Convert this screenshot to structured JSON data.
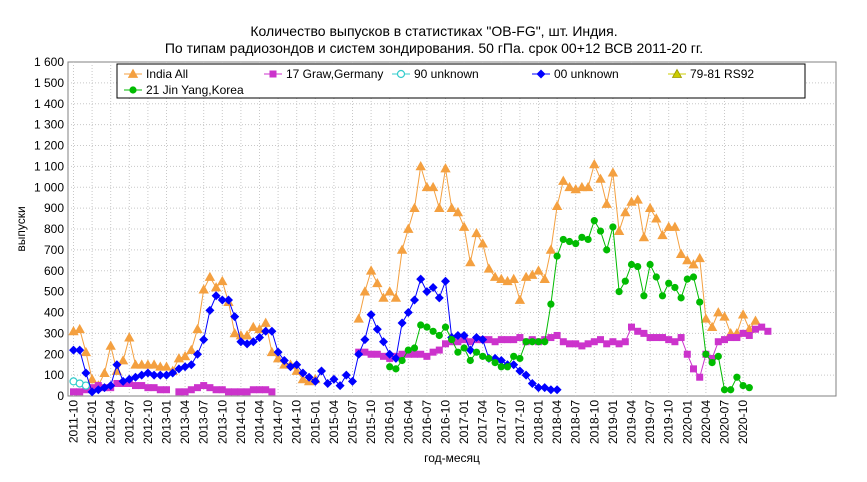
{
  "chart_data": {
    "type": "line",
    "title": "Количество выпусков в статистиках \"OB-FG\", шт. Индия.",
    "subtitle": "По типам радиозондов и систем зондирования. 50 гПа. срок 00+12 ВСВ 2011-20 гг.",
    "xlabel": "год-месяц",
    "ylabel": "выпуски",
    "ylim": [
      0,
      1600
    ],
    "yticks": [
      "0",
      "100",
      "200",
      "300",
      "400",
      "500",
      "600",
      "700",
      "800",
      "900",
      "1 000",
      "1 100",
      "1 200",
      "1 300",
      "1 400",
      "1 500",
      "1 600"
    ],
    "x_start": "2011-10",
    "xtick_labels": [
      "2011-10",
      "2012-01",
      "2012-04",
      "2012-07",
      "2012-10",
      "2013-01",
      "2013-04",
      "2013-07",
      "2013-10",
      "2014-01",
      "2014-04",
      "2014-07",
      "2014-10",
      "2015-01",
      "2015-04",
      "2015-07",
      "2015-10",
      "2016-01",
      "2016-04",
      "2016-07",
      "2016-10",
      "2017-01",
      "2017-04",
      "2017-07",
      "2017-10",
      "2018-01",
      "2018-04",
      "2018-07",
      "2018-10",
      "2019-01",
      "2019-04",
      "2019-07",
      "2019-10",
      "2020-01",
      "2020-04",
      "2020-07",
      "2020-10"
    ],
    "grid": true,
    "legend_position": "top",
    "series": [
      {
        "name": "India All",
        "color": "#f4a040",
        "marker": "triangle",
        "values": [
          310,
          320,
          210,
          80,
          50,
          110,
          240,
          120,
          170,
          280,
          150,
          150,
          150,
          150,
          140,
          140,
          120,
          180,
          190,
          220,
          320,
          510,
          570,
          520,
          550,
          450,
          300,
          290,
          290,
          330,
          320,
          350,
          210,
          180,
          150,
          150,
          120,
          80,
          70,
          80,
          null,
          null,
          null,
          null,
          null,
          null,
          370,
          500,
          600,
          540,
          470,
          500,
          470,
          700,
          800,
          900,
          1100,
          1000,
          1000,
          900,
          1090,
          900,
          880,
          810,
          640,
          780,
          730,
          610,
          570,
          560,
          550,
          560,
          460,
          570,
          580,
          600,
          560,
          700,
          910,
          1030,
          1000,
          990,
          1000,
          1000,
          1110,
          1040,
          920,
          1070,
          790,
          880,
          930,
          940,
          760,
          900,
          850,
          770,
          810,
          810,
          680,
          650,
          630,
          660,
          370,
          330,
          400,
          380,
          300,
          300,
          390,
          320,
          360
        ]
      },
      {
        "name": "17 Graw,Germany",
        "color": "#cc33cc",
        "marker": "square",
        "values": [
          20,
          20,
          30,
          40,
          50,
          40,
          40,
          60,
          60,
          60,
          50,
          50,
          40,
          40,
          30,
          30,
          null,
          20,
          20,
          30,
          40,
          50,
          40,
          30,
          30,
          20,
          20,
          20,
          20,
          30,
          30,
          30,
          20,
          null,
          null,
          null,
          null,
          null,
          null,
          null,
          null,
          null,
          null,
          null,
          null,
          null,
          210,
          210,
          200,
          200,
          190,
          180,
          190,
          200,
          200,
          200,
          200,
          190,
          210,
          220,
          250,
          260,
          260,
          270,
          260,
          270,
          270,
          270,
          260,
          270,
          270,
          270,
          280,
          260,
          270,
          260,
          270,
          280,
          290,
          260,
          250,
          250,
          240,
          250,
          260,
          270,
          250,
          260,
          250,
          260,
          330,
          310,
          300,
          280,
          280,
          280,
          270,
          260,
          280,
          200,
          130,
          90,
          200,
          180,
          260,
          270,
          280,
          280,
          300,
          290,
          320,
          330,
          310
        ]
      },
      {
        "name": "90 unknown",
        "color": "#33cccc",
        "marker": "circle-open",
        "values": [
          70,
          60,
          50,
          null,
          null,
          null,
          null,
          null,
          null,
          null,
          null,
          null,
          null,
          null,
          null,
          null,
          null,
          null,
          null,
          null,
          null,
          null,
          null,
          null,
          null,
          null,
          null,
          null,
          null,
          null,
          null,
          null,
          null,
          null,
          null,
          null,
          null,
          null,
          null,
          null,
          null,
          null,
          null,
          null,
          null,
          null,
          null,
          null,
          null,
          null,
          null,
          null,
          null,
          null,
          null,
          null,
          null,
          null,
          null,
          null,
          null,
          null,
          null,
          null,
          null,
          null,
          null,
          null,
          null,
          null,
          null,
          null,
          null,
          null,
          null,
          null,
          null,
          null,
          null,
          null,
          null,
          null,
          null,
          null,
          null,
          null,
          null,
          null,
          null,
          null,
          null,
          null,
          null,
          null,
          null,
          null,
          null,
          null,
          null,
          null,
          null,
          null,
          null,
          null,
          null,
          null,
          null,
          null,
          null,
          null,
          null,
          null,
          null
        ]
      },
      {
        "name": "00 unknown",
        "color": "#0000ff",
        "marker": "diamond",
        "values": [
          220,
          220,
          110,
          20,
          30,
          40,
          50,
          150,
          70,
          80,
          90,
          100,
          110,
          100,
          100,
          100,
          110,
          130,
          140,
          150,
          200,
          270,
          410,
          480,
          460,
          460,
          380,
          260,
          250,
          260,
          280,
          310,
          310,
          210,
          170,
          140,
          150,
          110,
          90,
          70,
          120,
          60,
          80,
          50,
          100,
          70,
          200,
          270,
          390,
          320,
          260,
          200,
          180,
          350,
          400,
          460,
          560,
          500,
          520,
          470,
          550,
          280,
          290,
          290,
          220,
          280,
          270,
          180,
          180,
          170,
          150,
          150,
          120,
          100,
          60,
          40,
          40,
          30,
          30,
          null,
          null,
          null,
          null,
          null,
          null,
          null,
          null,
          null,
          null,
          null,
          null,
          null,
          null,
          null,
          null,
          null,
          null,
          null,
          null,
          null,
          null,
          null,
          null,
          null,
          null,
          null,
          null,
          null,
          null,
          null,
          null,
          null,
          null
        ]
      },
      {
        "name": "79-81 RS92",
        "color": "#cccc00",
        "marker": "triangle-yellow",
        "values": []
      },
      {
        "name": "21 Jin Yang,Korea",
        "color": "#00bb00",
        "marker": "circle",
        "values": [
          null,
          null,
          null,
          null,
          null,
          null,
          null,
          null,
          null,
          null,
          null,
          null,
          null,
          null,
          null,
          null,
          null,
          null,
          null,
          null,
          null,
          null,
          null,
          null,
          null,
          null,
          null,
          null,
          null,
          null,
          null,
          null,
          null,
          null,
          null,
          null,
          null,
          null,
          null,
          null,
          null,
          null,
          null,
          null,
          null,
          null,
          null,
          null,
          null,
          null,
          null,
          140,
          130,
          170,
          220,
          230,
          340,
          330,
          310,
          290,
          330,
          270,
          210,
          230,
          170,
          210,
          190,
          180,
          160,
          140,
          140,
          190,
          180,
          260,
          260,
          260,
          260,
          440,
          670,
          750,
          740,
          730,
          760,
          750,
          840,
          790,
          700,
          810,
          500,
          550,
          630,
          620,
          480,
          630,
          570,
          480,
          540,
          520,
          470,
          560,
          570,
          450,
          200,
          160,
          190,
          30,
          30,
          90,
          50,
          40
        ]
      }
    ]
  }
}
